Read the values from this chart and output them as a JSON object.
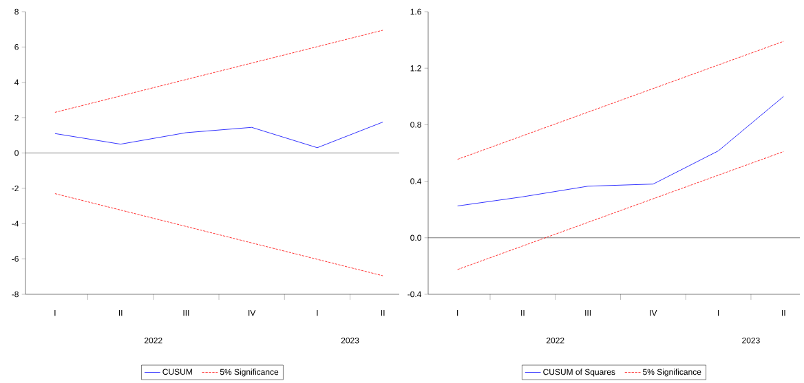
{
  "chart_data": [
    {
      "type": "line",
      "categories": [
        "I",
        "II",
        "III",
        "IV",
        "I",
        "II"
      ],
      "series": [
        {
          "name": "CUSUM",
          "color": "#0000ff",
          "line_style": "solid",
          "values": [
            1.1,
            0.5,
            1.15,
            1.45,
            0.3,
            1.75
          ]
        },
        {
          "name": "5% Significance",
          "color": "#ff0000",
          "line_style": "dashed",
          "values": [
            2.3,
            3.23,
            4.16,
            5.09,
            6.02,
            6.95
          ]
        },
        {
          "color": "#ff0000",
          "line_style": "dashed",
          "values": [
            -2.3,
            -3.23,
            -4.16,
            -5.09,
            -6.02,
            -6.95
          ]
        }
      ],
      "ylim": [
        -8,
        8
      ],
      "yticks": [
        -8,
        -6,
        -4,
        -2,
        0,
        2,
        4,
        6,
        8
      ],
      "ref_lines": [
        {
          "axis": "y",
          "value": 0,
          "color": "#000000"
        }
      ],
      "annotations": [
        "2022",
        "2023"
      ],
      "grid": false,
      "legend": "bottom"
    },
    {
      "type": "line",
      "categories": [
        "I",
        "II",
        "III",
        "IV",
        "I",
        "II"
      ],
      "series": [
        {
          "name": "CUSUM of Squares",
          "color": "#0000ff",
          "line_style": "solid",
          "values": [
            0.225,
            0.29,
            0.365,
            0.38,
            0.615,
            1.0
          ]
        },
        {
          "name": "5% Significance",
          "color": "#ff0000",
          "line_style": "dashed",
          "values": [
            0.555,
            0.722,
            0.889,
            1.056,
            1.223,
            1.39
          ]
        },
        {
          "color": "#ff0000",
          "line_style": "dashed",
          "values": [
            -0.225,
            -0.058,
            0.109,
            0.276,
            0.443,
            0.61
          ]
        }
      ],
      "ylim": [
        -0.4,
        1.6
      ],
      "yticks": [
        {
          "value": -0.4,
          "label": "-0.4"
        },
        {
          "value": 0,
          "label": "0.0"
        },
        {
          "value": 0.4,
          "label": "0.4"
        },
        {
          "value": 0.8,
          "label": "0.8"
        },
        {
          "value": 1.2,
          "label": "1.2"
        },
        {
          "value": 1.6,
          "label": "1.6"
        }
      ],
      "ref_lines": [
        {
          "axis": "y",
          "value": 0,
          "color": "#000000"
        }
      ],
      "annotations": [
        "2022",
        "2023"
      ],
      "grid": false,
      "legend": "bottom"
    }
  ]
}
